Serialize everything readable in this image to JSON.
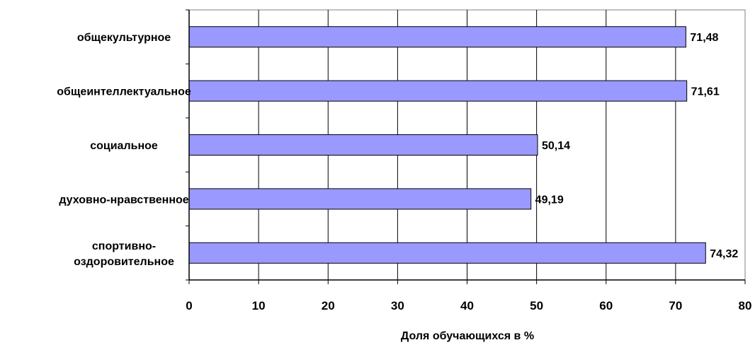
{
  "chart_data": {
    "type": "bar",
    "orientation": "horizontal",
    "categories": [
      [
        "общекультурное"
      ],
      [
        "общеинтеллектуальное"
      ],
      [
        "социальное"
      ],
      [
        "духовно-нравственное"
      ],
      [
        "спортивно-",
        "оздоровительное"
      ]
    ],
    "values": [
      71.48,
      71.61,
      50.14,
      49.19,
      74.32
    ],
    "value_labels": [
      "71,48",
      "71,61",
      "50,14",
      "49,19",
      "74,32"
    ],
    "title": "",
    "xlabel": "Доля обучающихся в %",
    "ylabel": "",
    "xlim": [
      0,
      80
    ],
    "xticks": [
      "0",
      "10",
      "20",
      "30",
      "40",
      "50",
      "60",
      "70",
      "80"
    ],
    "grid": true,
    "legend": "none",
    "colors": {
      "bar_fill": "#9999ff",
      "bar_stroke": "#000000",
      "grid": "#000000",
      "plot_border": "#808080"
    }
  }
}
